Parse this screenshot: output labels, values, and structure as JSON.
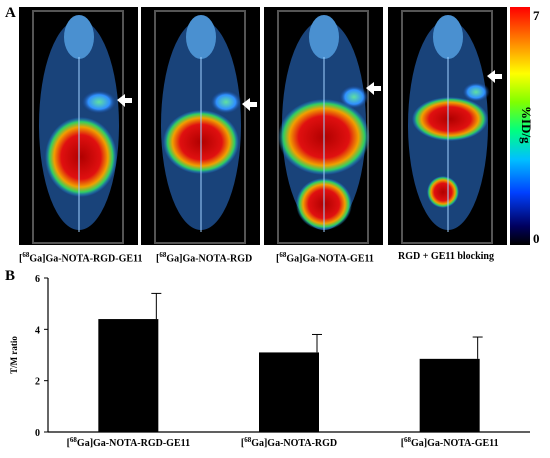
{
  "figure": {
    "panel_a_label": "A",
    "panel_b_label": "B"
  },
  "scans": [
    {
      "sup": "68",
      "label_pre": "[",
      "label_post": "Ga]Ga-NOTA-RGD-GE11"
    },
    {
      "sup": "68",
      "label_pre": "[",
      "label_post": "Ga]Ga-NOTA-RGD"
    },
    {
      "sup": "68",
      "label_pre": "[",
      "label_post": "Ga]Ga-NOTA-GE11"
    },
    {
      "sup": "",
      "label_pre": "RGD + GE11 blocking",
      "label_post": ""
    }
  ],
  "colorbar": {
    "max_label": "7",
    "min_label": "0",
    "unit_label": "%ID/g"
  },
  "chart_data": {
    "type": "bar",
    "categories": [
      "[68Ga]Ga-NOTA-RGD-GE11",
      "[68Ga]Ga-NOTA-RGD",
      "[68Ga]Ga-NOTA-GE11"
    ],
    "category_display": [
      {
        "pre": "[",
        "sup": "68",
        "post": "Ga]Ga-NOTA-RGD-GE11"
      },
      {
        "pre": "[",
        "sup": "68",
        "post": "Ga]Ga-NOTA-RGD"
      },
      {
        "pre": "[",
        "sup": "68",
        "post": "Ga]Ga-NOTA-GE11"
      }
    ],
    "values": [
      4.4,
      3.1,
      2.85
    ],
    "errors": [
      1.0,
      0.7,
      0.85
    ],
    "ylabel": "T/M ratio",
    "ylim": [
      0,
      6
    ],
    "yticks": [
      0,
      2,
      4,
      6
    ],
    "bar_color": "#000000"
  }
}
